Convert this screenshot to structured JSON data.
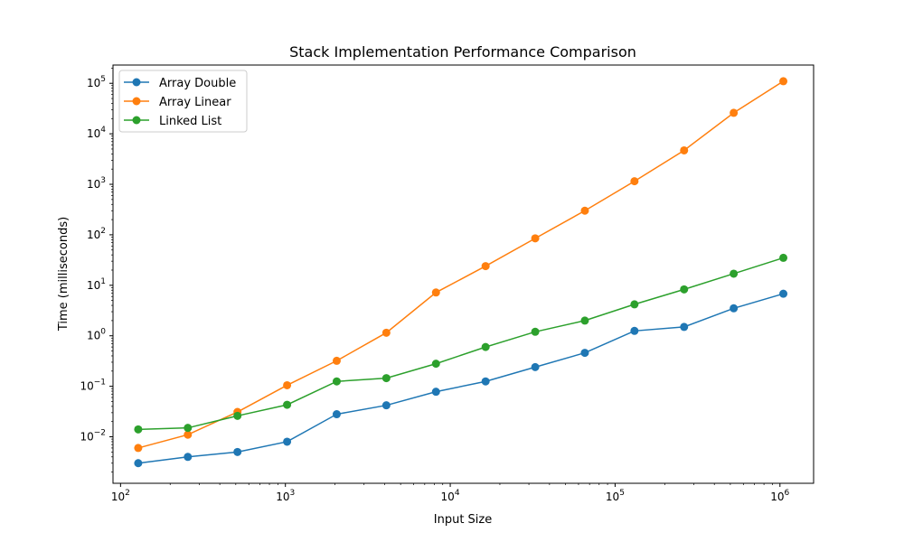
{
  "chart_data": {
    "type": "line",
    "title": "Stack Implementation Performance Comparison",
    "xlabel": "Input Size",
    "ylabel": "Time (milliseconds)",
    "xscale": "log",
    "yscale": "log",
    "xlim": [
      90,
      1600000
    ],
    "ylim": [
      0.0012,
      230000
    ],
    "grid": false,
    "legend_position": "top-left",
    "x_ticks": [
      {
        "base": "10",
        "exp": "2",
        "value": 100
      },
      {
        "base": "10",
        "exp": "3",
        "value": 1000
      },
      {
        "base": "10",
        "exp": "4",
        "value": 10000
      },
      {
        "base": "10",
        "exp": "5",
        "value": 100000
      },
      {
        "base": "10",
        "exp": "6",
        "value": 1000000
      }
    ],
    "y_ticks": [
      {
        "base": "10",
        "exp": "−2",
        "value": 0.01
      },
      {
        "base": "10",
        "exp": "−1",
        "value": 0.1
      },
      {
        "base": "10",
        "exp": "0",
        "value": 1
      },
      {
        "base": "10",
        "exp": "1",
        "value": 10
      },
      {
        "base": "10",
        "exp": "2",
        "value": 100
      },
      {
        "base": "10",
        "exp": "3",
        "value": 1000
      },
      {
        "base": "10",
        "exp": "4",
        "value": 10000
      },
      {
        "base": "10",
        "exp": "5",
        "value": 100000
      }
    ],
    "x": [
      128,
      256,
      512,
      1024,
      2048,
      4096,
      8192,
      16384,
      32768,
      65536,
      131072,
      262144,
      524288,
      1048576
    ],
    "series": [
      {
        "name": "Array Double",
        "color": "#1f77b4",
        "values": [
          0.003,
          0.004,
          0.005,
          0.008,
          0.028,
          0.042,
          0.078,
          0.125,
          0.24,
          0.46,
          1.25,
          1.5,
          3.5,
          6.8
        ]
      },
      {
        "name": "Array Linear",
        "color": "#ff7f0e",
        "values": [
          0.006,
          0.011,
          0.031,
          0.105,
          0.32,
          1.15,
          7.2,
          24,
          85,
          300,
          1150,
          4700,
          26000,
          110000
        ]
      },
      {
        "name": "Linked List",
        "color": "#2ca02c",
        "values": [
          0.014,
          0.015,
          0.026,
          0.043,
          0.125,
          0.145,
          0.28,
          0.6,
          1.2,
          2.0,
          4.2,
          8.3,
          17,
          35
        ]
      }
    ]
  }
}
